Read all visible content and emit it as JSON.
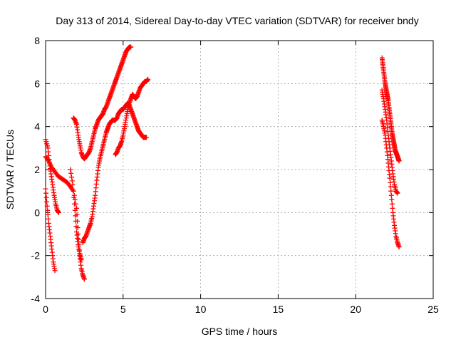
{
  "chart_data": {
    "type": "scatter",
    "title": "Day 313 of 2014, Sidereal Day-to-day VTEC variation (SDTVAR) for receiver bndy",
    "xlabel": "GPS time / hours",
    "ylabel": "SDTVAR / TECUs",
    "xlim": [
      0,
      25
    ],
    "ylim": [
      -4,
      8
    ],
    "xticks": [
      0,
      5,
      10,
      15,
      20,
      25
    ],
    "yticks": [
      -4,
      -2,
      0,
      2,
      4,
      6,
      8
    ],
    "grid": true,
    "marker": "+",
    "color": "#ff0000",
    "series": [
      {
        "x": [
          0.0,
          0.1,
          0.2,
          0.3,
          0.4,
          0.5,
          0.6
        ],
        "y": [
          1.1,
          0.3,
          -0.5,
          -1.1,
          -1.7,
          -2.3,
          -2.7
        ]
      },
      {
        "x": [
          0.0,
          0.15,
          0.25,
          0.35,
          0.45,
          0.55,
          0.65,
          0.75,
          0.85
        ],
        "y": [
          3.4,
          3.0,
          2.3,
          1.8,
          1.3,
          0.8,
          0.4,
          0.1,
          0.0
        ]
      },
      {
        "x": [
          0.0,
          0.2,
          0.4,
          0.6,
          0.8,
          1.0,
          1.2,
          1.4,
          1.6,
          1.8,
          2.0,
          2.1,
          2.2,
          2.3,
          2.4,
          2.5
        ],
        "y": [
          2.6,
          2.4,
          2.1,
          1.9,
          1.7,
          1.6,
          1.5,
          1.4,
          1.2,
          1.0,
          0.2,
          -1.0,
          -2.0,
          -2.6,
          -2.9,
          -3.1
        ]
      },
      {
        "x": [
          1.6,
          1.75,
          1.9,
          2.0,
          2.1,
          2.2,
          2.3
        ],
        "y": [
          2.0,
          1.3,
          0.1,
          -0.9,
          -1.5,
          -1.9,
          -2.2
        ]
      },
      {
        "x": [
          1.8,
          1.9,
          2.0,
          2.1,
          2.2,
          2.3,
          2.4,
          2.5,
          2.6,
          2.7,
          2.8,
          2.9,
          3.0,
          3.1,
          3.2,
          3.3,
          3.4,
          3.5,
          3.6,
          3.7,
          3.8,
          3.9,
          4.0,
          4.1,
          4.2,
          4.3,
          4.4,
          4.5,
          4.6,
          4.7,
          4.8,
          4.9,
          5.0,
          5.1,
          5.2,
          5.3,
          5.4,
          5.5
        ],
        "y": [
          4.4,
          4.3,
          4.1,
          3.6,
          3.2,
          2.8,
          2.6,
          2.5,
          2.6,
          2.7,
          2.8,
          3.0,
          3.3,
          3.6,
          3.9,
          4.1,
          4.3,
          4.4,
          4.5,
          4.6,
          4.8,
          4.9,
          5.1,
          5.3,
          5.5,
          5.7,
          5.9,
          6.1,
          6.3,
          6.5,
          6.7,
          6.9,
          7.1,
          7.3,
          7.5,
          7.6,
          7.7,
          7.7
        ]
      },
      {
        "x": [
          2.4,
          2.5,
          2.6,
          2.7,
          2.8,
          2.9,
          3.0,
          3.1,
          3.2,
          3.3,
          3.4,
          3.5,
          3.6,
          3.7,
          3.8,
          3.9,
          4.0,
          4.1,
          4.2,
          4.3,
          4.4,
          4.5,
          4.6,
          4.7,
          4.8,
          4.9,
          5.0,
          5.1,
          5.2,
          5.3,
          5.4,
          5.5,
          5.6,
          5.7,
          5.8,
          5.9,
          6.0,
          6.1,
          6.2,
          6.3,
          6.4,
          6.5
        ],
        "y": [
          -1.4,
          -1.2,
          -1.1,
          -0.9,
          -0.7,
          -0.5,
          -0.2,
          0.3,
          0.8,
          1.5,
          2.1,
          2.5,
          2.8,
          3.1,
          3.4,
          3.7,
          3.9,
          4.1,
          4.2,
          4.3,
          4.3,
          4.3,
          4.4,
          4.6,
          4.7,
          4.8,
          4.8,
          4.9,
          5.0,
          5.1,
          5.0,
          4.8,
          4.6,
          4.4,
          4.2,
          4.0,
          3.8,
          3.7,
          3.6,
          3.5,
          3.5,
          3.5
        ]
      },
      {
        "x": [
          4.5,
          4.6,
          4.7,
          4.8,
          4.9,
          5.0,
          5.1,
          5.2,
          5.3,
          5.4,
          5.5,
          5.6,
          5.7,
          5.8,
          5.9,
          6.0,
          6.1,
          6.2,
          6.3,
          6.4,
          6.5,
          6.6
        ],
        "y": [
          2.7,
          2.8,
          3.0,
          3.1,
          3.3,
          3.6,
          4.0,
          4.4,
          4.8,
          5.1,
          5.3,
          5.5,
          5.4,
          5.3,
          5.4,
          5.6,
          5.8,
          5.9,
          6.0,
          6.1,
          6.1,
          6.2
        ]
      },
      {
        "x": [
          21.7,
          21.75,
          21.8,
          21.85,
          21.9,
          21.95,
          22.0,
          22.05,
          22.1,
          22.15,
          22.2,
          22.25,
          22.3,
          22.35,
          22.4,
          22.45,
          22.5,
          22.55,
          22.6,
          22.65,
          22.7,
          22.75,
          22.8
        ],
        "y": [
          7.2,
          6.9,
          6.6,
          6.3,
          6.0,
          5.8,
          5.6,
          5.4,
          5.2,
          4.9,
          4.6,
          4.3,
          4.0,
          3.7,
          3.5,
          3.3,
          3.1,
          2.9,
          2.8,
          2.7,
          2.6,
          2.5,
          2.4
        ]
      },
      {
        "x": [
          21.7,
          21.8,
          21.9,
          22.0,
          22.1,
          22.2,
          22.3,
          22.4,
          22.5,
          22.6,
          22.7
        ],
        "y": [
          5.7,
          5.3,
          4.8,
          4.3,
          3.6,
          3.0,
          2.4,
          1.8,
          1.3,
          1.0,
          0.9
        ]
      },
      {
        "x": [
          21.7,
          21.8,
          21.9,
          22.0,
          22.1,
          22.2,
          22.3,
          22.4,
          22.5,
          22.6,
          22.7,
          22.8
        ],
        "y": [
          4.3,
          4.0,
          3.6,
          3.0,
          2.3,
          1.6,
          0.8,
          0.0,
          -0.6,
          -1.1,
          -1.4,
          -1.6
        ]
      }
    ]
  }
}
